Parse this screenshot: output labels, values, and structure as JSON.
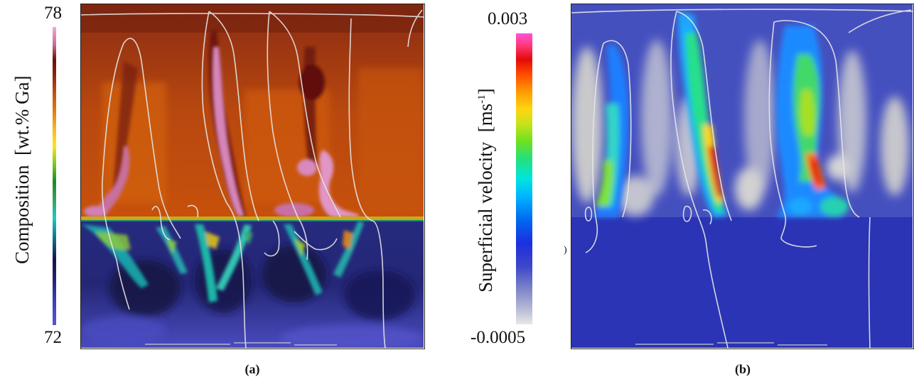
{
  "panels": [
    {
      "id": "a",
      "caption": "(a)",
      "colorbar": {
        "max_label": "78",
        "min_label": "72",
        "title": "Composition",
        "unit": "[wt.% Ga]",
        "range": [
          72,
          78
        ]
      }
    },
    {
      "id": "b",
      "caption": "(b)",
      "colorbar": {
        "max_label": "0.003",
        "min_label": "-0.0005",
        "title": "Superficial velocity",
        "unit_prefix": "[ms",
        "unit_sup": "-1",
        "unit_suffix": "]",
        "range": [
          -0.0005,
          0.003
        ]
      }
    }
  ],
  "colors": {
    "composition_map": [
      "#5b55d4",
      "#3b3fb8",
      "#202070",
      "#1b1a5a",
      "#0f9aa2",
      "#21c9c3",
      "#4ab86a",
      "#1a8a28",
      "#9ad21e",
      "#ffe41c",
      "#f6b52a",
      "#e07a14",
      "#c24f0e",
      "#8a2510",
      "#6a1208",
      "#c86b98",
      "#f0a8d8"
    ],
    "velocity_map": [
      "#e8e8e8",
      "#b9bdd6",
      "#7f86c9",
      "#3d46c8",
      "#1c2fe0",
      "#0069f0",
      "#00b4ff",
      "#00e5e0",
      "#25e07a",
      "#70e020",
      "#c9e21b",
      "#ffd50f",
      "#ff9a05",
      "#ff4a00",
      "#e30a0a",
      "#ff3a7a",
      "#ff52dd"
    ]
  }
}
